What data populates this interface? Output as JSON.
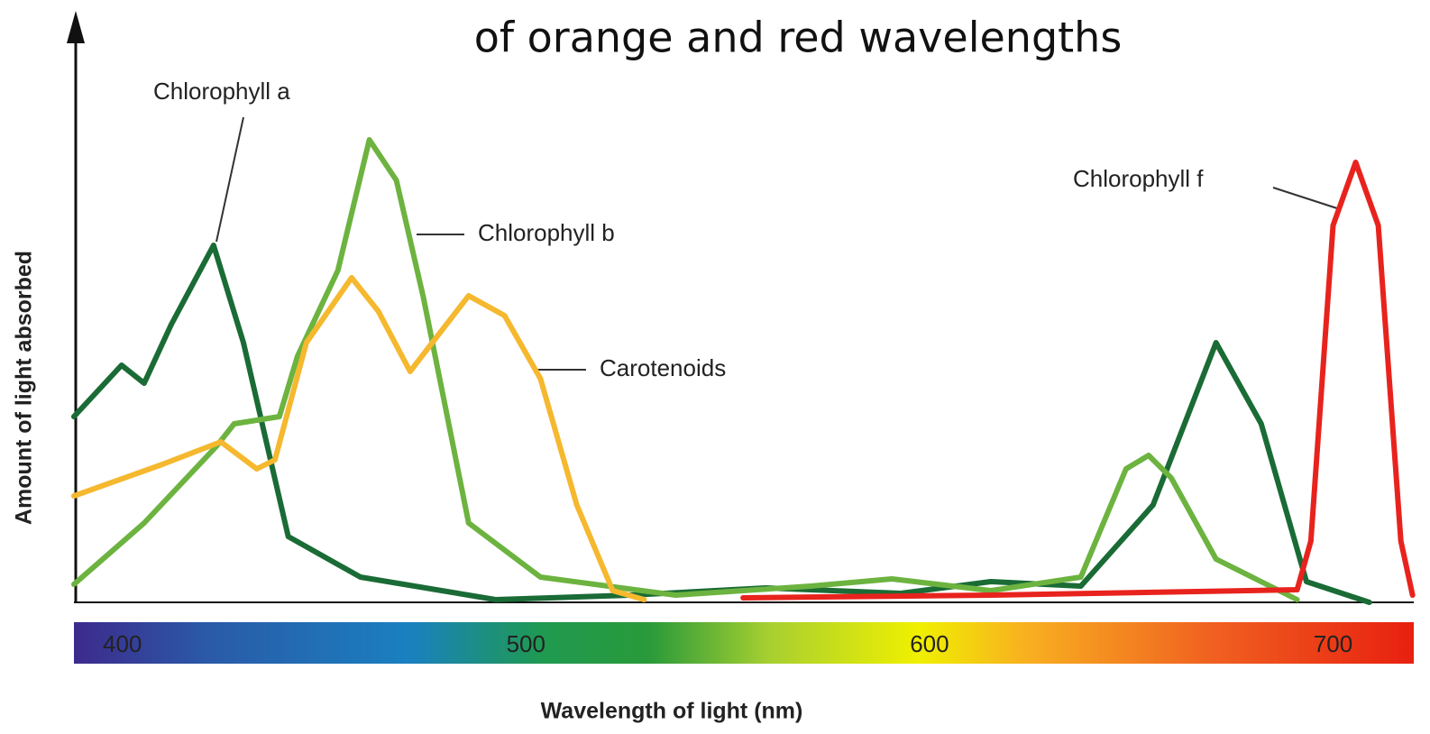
{
  "chart_data": {
    "type": "line",
    "title": "of orange and red wavelengths",
    "xlabel": "Wavelength of light (nm)",
    "ylabel": "Amount of light absorbed",
    "xlim": [
      388,
      720
    ],
    "xticks": [
      400,
      500,
      600,
      700
    ],
    "ylim": [
      0,
      125
    ],
    "series": [
      {
        "name": "Chlorophyll a",
        "color": "#1a6b35",
        "x": [
          388,
          399.8,
          405.4,
          412.1,
          422.6,
          430,
          441.1,
          459,
          492.5,
          526,
          559.4,
          592.9,
          615.2,
          637.5,
          655.4,
          671,
          682.2,
          693.4,
          709
        ],
        "values": [
          41.2,
          52.6,
          48.6,
          61.6,
          79.2,
          57.6,
          14.6,
          5.6,
          0.6,
          1.6,
          3.2,
          2,
          4.6,
          3.6,
          21.6,
          57.6,
          39.6,
          4.6,
          0
        ]
      },
      {
        "name": "Chlorophyll b",
        "color": "#6cb33f",
        "x": [
          388,
          405.4,
          423.3,
          427.7,
          438.9,
          443.4,
          453.4,
          461.2,
          467.9,
          474.6,
          485.8,
          503.6,
          537.1,
          570.6,
          590.7,
          615.2,
          637.5,
          648.7,
          654.3,
          659.9,
          671,
          691.1
        ],
        "values": [
          4,
          17.6,
          34.6,
          39.6,
          41.2,
          54.6,
          73.6,
          102.6,
          93.6,
          67.6,
          17.6,
          5.6,
          1.6,
          3.6,
          5.2,
          2.6,
          5.6,
          29.6,
          32.6,
          27.6,
          9.6,
          0.6
        ]
      },
      {
        "name": "Carotenoids",
        "color": "#f5b82e",
        "x": [
          388,
          409.9,
          424.4,
          433.3,
          437.8,
          445.6,
          456.8,
          463.4,
          471.3,
          476.8,
          485.8,
          494.7,
          503.6,
          512.6,
          521.5,
          529.3
        ],
        "values": [
          23.6,
          30.6,
          35.6,
          29.6,
          31.6,
          57.6,
          72,
          64.6,
          51.2,
          57.6,
          68,
          63.6,
          49.6,
          21.6,
          2.6,
          0.6
        ]
      },
      {
        "name": "Chlorophyll f",
        "color": "#e8231d",
        "x": [
          553.8,
          615.2,
          691.1,
          694.5,
          700,
          705.6,
          711.2,
          716.8,
          719.7
        ],
        "values": [
          1,
          1.6,
          2.8,
          13.6,
          83.6,
          97.6,
          83.6,
          13.6,
          1.6
        ]
      }
    ]
  }
}
